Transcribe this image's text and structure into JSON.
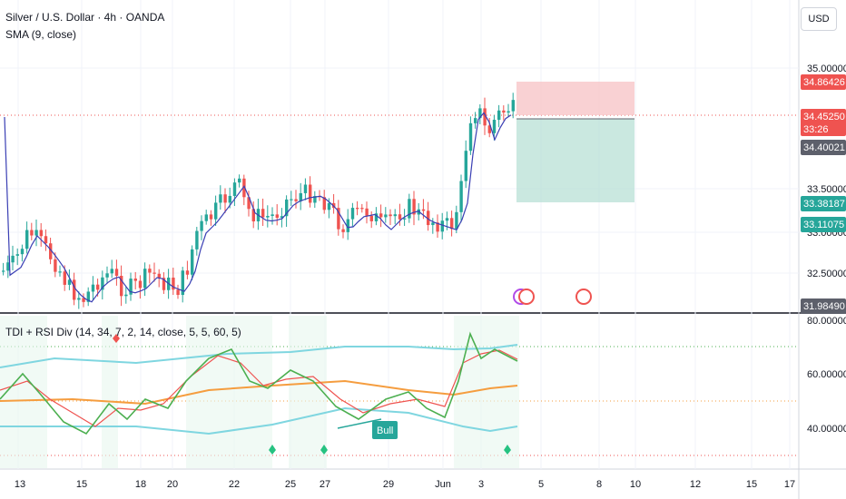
{
  "legend": {
    "title": "Silver / U.S. Dollar · 4h · OANDA",
    "sma": "SMA (9, close)",
    "indicator": "TDI + RSI Div (14, 34, 7, 2, 14, close, 5, 5, 60, 5)"
  },
  "currency_button": "USD",
  "colors": {
    "up": "#26a69a",
    "down": "#ef5350",
    "sma": "#3a3fb4",
    "green_line": "#4caf50",
    "red_line": "#ef5350",
    "orange_line": "#f59d3f",
    "band_line": "#7fd6e0"
  },
  "price_axis": {
    "ticks": [
      "35.00000",
      "33.50000",
      "33.00000",
      "32.50000"
    ],
    "tags": [
      {
        "label": "34.86426",
        "color": "#ef5350"
      },
      {
        "label": "34.45250",
        "sub": "33:26",
        "color": "#ef5350"
      },
      {
        "label": "34.40021",
        "color": "#5d606b"
      },
      {
        "label": "33.38187",
        "color": "#26a69a"
      },
      {
        "label": "33.11075",
        "color": "#26a69a"
      },
      {
        "label": "31.98490",
        "color": "#5d606b"
      }
    ]
  },
  "indicator_axis": {
    "ticks": [
      "80.00000",
      "60.00000",
      "40.00000"
    ]
  },
  "time_axis": {
    "labels": [
      "13",
      "15",
      "18",
      "20",
      "22",
      "25",
      "27",
      "29",
      "Jun",
      "3",
      "5",
      "8",
      "10",
      "12",
      "15",
      "17"
    ]
  },
  "bull_label": "Bull"
}
